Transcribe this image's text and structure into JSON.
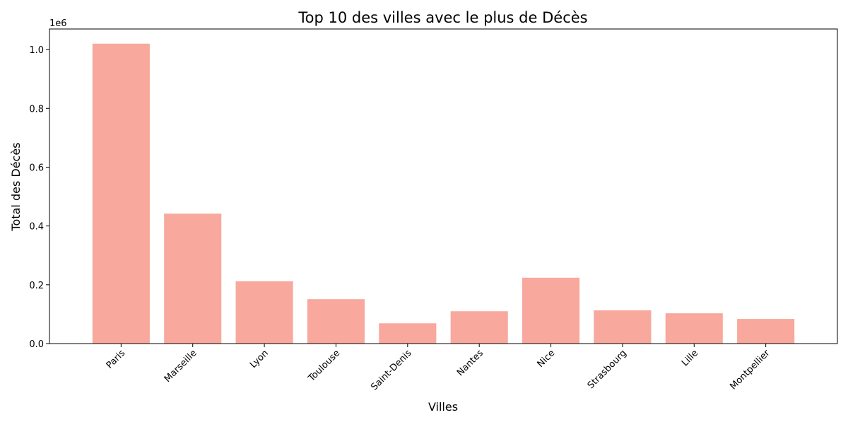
{
  "chart_data": {
    "type": "bar",
    "title": "Top 10 des villes avec le plus de Décès",
    "xlabel": "Villes",
    "ylabel": "Total des Décès",
    "y_offset_label": "1e6",
    "categories": [
      "Paris",
      "Marseille",
      "Lyon",
      "Toulouse",
      "Saint-Denis",
      "Nantes",
      "Nice",
      "Strasbourg",
      "Lille",
      "Montpellier"
    ],
    "values": [
      1020000,
      442000,
      212000,
      151000,
      69000,
      110000,
      224000,
      113000,
      103000,
      84000
    ],
    "ylim": [
      0,
      1070000
    ],
    "yticks": [
      0,
      200000,
      400000,
      600000,
      800000,
      1000000
    ],
    "ytick_labels": [
      "0.0",
      "0.2",
      "0.4",
      "0.6",
      "0.8",
      "1.0"
    ],
    "bar_color": "#f8a89c",
    "grid": false,
    "legend": "none"
  }
}
